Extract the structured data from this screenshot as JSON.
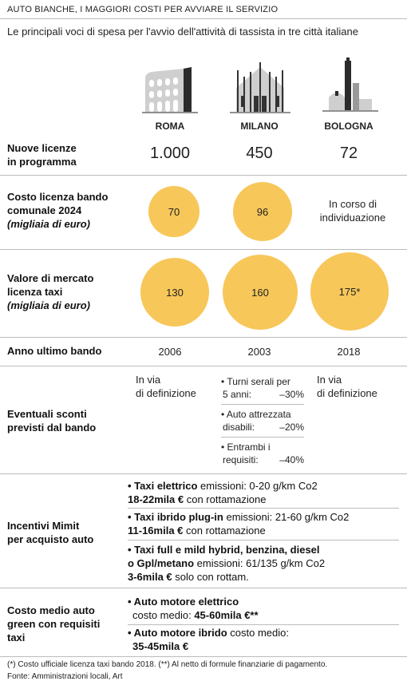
{
  "header": {
    "kicker": "AUTO BIANCHE, I MAGGIORI COSTI PER AVVIARE IL SERVIZIO",
    "subtitle": "Le principali voci di spesa per l'avvio dell'attività di tassista in tre città italiane"
  },
  "cities": [
    "ROMA",
    "MILANO",
    "BOLOGNA"
  ],
  "icons": [
    "colosseum-icon",
    "duomo-icon",
    "two-towers-icon"
  ],
  "rows": {
    "licenze": {
      "label_1": "Nuove licenze",
      "label_2": "in programma",
      "values": [
        "1.000",
        "450",
        "72"
      ]
    },
    "costo": {
      "label_1": "Costo licenza bando",
      "label_2": "comunale 2024",
      "label_3": "(migliaia di euro)",
      "values": [
        "70",
        "96"
      ],
      "bologna_1": "In corso di",
      "bologna_2": "individuazione"
    },
    "valore": {
      "label_1": "Valore di mercato",
      "label_2": "licenza taxi",
      "label_3": "(migliaia di euro)",
      "values": [
        "130",
        "160",
        "175*"
      ]
    },
    "anno": {
      "label": "Anno ultimo bando",
      "values": [
        "2006",
        "2003",
        "2018"
      ]
    },
    "sconti": {
      "label_1": "Eventuali sconti",
      "label_2": "previsti dal bando",
      "roma_1": "In via",
      "roma_2": "di definizione",
      "bologna_1": "In via",
      "bologna_2": "di definizione",
      "milano": [
        {
          "l1": "• Turni serali per",
          "l2a": "5 anni:",
          "l2b": "–30%"
        },
        {
          "l1": "• Auto attrezzata",
          "l2a": "disabili:",
          "l2b": "–20%"
        },
        {
          "l1": "• Entrambi i",
          "l2a": "requisiti:",
          "l2b": "–40%"
        }
      ]
    },
    "incentivi": {
      "label_1": "Incentivi Mimit",
      "label_2": "per acquisto auto",
      "i1_title": "• Taxi elettrico",
      "i1_em": " emissioni: 0-20 g/km Co2",
      "i1_price": "18-22mila €",
      "i1_rest": " con rottamazione",
      "i2_title": "• Taxi ibrido plug-in",
      "i2_em": " emissioni: 21-60 g/km Co2",
      "i2_price": "11-16mila €",
      "i2_rest": " con rottamazione",
      "i3_title": "• Taxi full e mild hybrid, benzina, diesel",
      "i3_title2": "o Gpl/metano",
      "i3_em": " emissioni: 61/135 g/km Co2",
      "i3_price": "3-6mila €",
      "i3_rest": " solo con rottam."
    },
    "costomedio": {
      "label_1": "Costo medio auto",
      "label_2": "green con requisiti",
      "label_3": "taxi",
      "c1_title": "• Auto motore elettrico",
      "c1_pre": "costo medio: ",
      "c1_price": "45-60mila €**",
      "c2_title": "• Auto motore ibrido",
      "c2_pre": " costo medio:",
      "c2_price": "35-45mila €"
    }
  },
  "footer": {
    "note": "(*) Costo ufficiale licenza taxi bando 2018. (**) Al netto di formule finanziarie di pagamento.",
    "source": "Fonte: Amministrazioni locali, Art"
  },
  "colors": {
    "circle": "#f7c75a",
    "rule": "#bbbbbb",
    "text": "#222222"
  }
}
